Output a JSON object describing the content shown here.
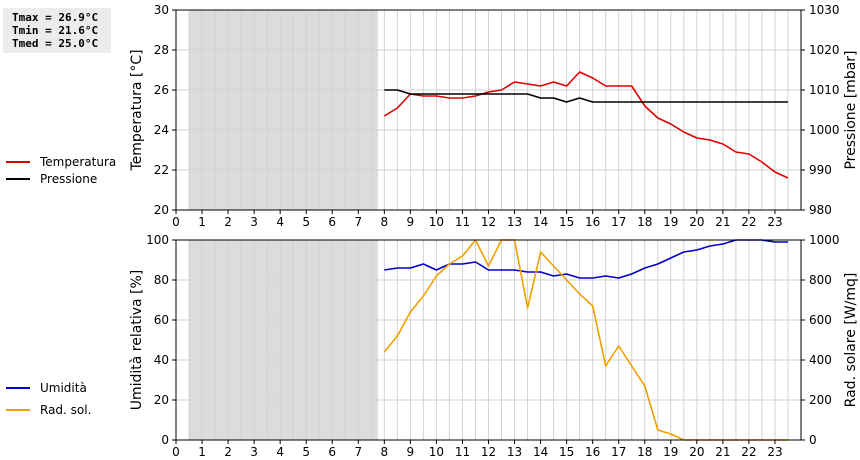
{
  "stats": {
    "tmax": "Tmax = 26.9°C",
    "tmin": "Tmin = 21.6°C",
    "tmed": "Tmed = 25.0°C"
  },
  "colors": {
    "temperature": "#dd0000",
    "pressure": "#000000",
    "humidity": "#0000cc",
    "solar": "#f0a000",
    "shade": "#dcdcdc",
    "grid": "#d2d2d2"
  },
  "chart_data": [
    {
      "type": "line",
      "xlim": [
        0,
        24
      ],
      "xticks": [
        0,
        1,
        2,
        3,
        4,
        5,
        6,
        7,
        8,
        9,
        10,
        11,
        12,
        13,
        14,
        15,
        16,
        17,
        18,
        19,
        20,
        21,
        22,
        23
      ],
      "shaded_x_range": [
        0.5,
        7.75
      ],
      "grid": true,
      "y_left": {
        "label": "Temperatura [°C]",
        "lim": [
          20,
          30
        ],
        "ticks": [
          20,
          22,
          24,
          26,
          28,
          30
        ]
      },
      "y_right": {
        "label": "Pressione [mbar]",
        "lim": [
          980,
          1030
        ],
        "ticks": [
          980,
          990,
          1000,
          1010,
          1020,
          1030
        ]
      },
      "legend": [
        "Temperatura",
        "Pressione"
      ],
      "series": [
        {
          "name": "Temperatura",
          "axis": "left",
          "x": [
            8,
            8.5,
            9,
            9.5,
            10,
            10.5,
            11,
            11.5,
            12,
            12.5,
            13,
            13.5,
            14,
            14.5,
            15,
            15.5,
            16,
            16.5,
            17,
            17.5,
            18,
            18.5,
            19,
            19.5,
            20,
            20.5,
            21,
            21.5,
            22,
            22.5,
            23,
            23.5
          ],
          "y": [
            24.7,
            25.1,
            25.8,
            25.7,
            25.7,
            25.6,
            25.6,
            25.7,
            25.9,
            26.0,
            26.4,
            26.3,
            26.2,
            26.4,
            26.2,
            26.9,
            26.6,
            26.2,
            26.2,
            26.2,
            25.2,
            24.6,
            24.3,
            23.9,
            23.6,
            23.5,
            23.3,
            22.9,
            22.8,
            22.4,
            21.9,
            21.6
          ]
        },
        {
          "name": "Pressione",
          "axis": "right",
          "x": [
            8,
            8.5,
            9,
            9.5,
            10,
            10.5,
            11,
            11.5,
            12,
            12.5,
            13,
            13.5,
            14,
            14.5,
            15,
            15.5,
            16,
            16.5,
            17,
            17.5,
            18,
            18.5,
            19,
            19.5,
            20,
            20.5,
            21,
            21.5,
            22,
            22.5,
            23,
            23.5
          ],
          "y": [
            1010,
            1010,
            1009,
            1009,
            1009,
            1009,
            1009,
            1009,
            1009,
            1009,
            1009,
            1009,
            1008,
            1008,
            1007,
            1008,
            1007,
            1007,
            1007,
            1007,
            1007,
            1007,
            1007,
            1007,
            1007,
            1007,
            1007,
            1007,
            1007,
            1007,
            1007,
            1007
          ]
        }
      ]
    },
    {
      "type": "line",
      "xlim": [
        0,
        24
      ],
      "xticks": [
        0,
        1,
        2,
        3,
        4,
        5,
        6,
        7,
        8,
        9,
        10,
        11,
        12,
        13,
        14,
        15,
        16,
        17,
        18,
        19,
        20,
        21,
        22,
        23
      ],
      "shaded_x_range": [
        0.5,
        7.75
      ],
      "grid": true,
      "y_left": {
        "label": "Umidità relativa [%]",
        "lim": [
          0,
          100
        ],
        "ticks": [
          0,
          20,
          40,
          60,
          80,
          100
        ]
      },
      "y_right": {
        "label": "Rad. solare [W/mq]",
        "lim": [
          0,
          1000
        ],
        "ticks": [
          0,
          200,
          400,
          600,
          800,
          1000
        ]
      },
      "legend": [
        "Umidità",
        "Rad. sol."
      ],
      "series": [
        {
          "name": "Umidità",
          "axis": "left",
          "x": [
            8,
            8.5,
            9,
            9.5,
            10,
            10.5,
            11,
            11.5,
            12,
            12.5,
            13,
            13.5,
            14,
            14.5,
            15,
            15.5,
            16,
            16.5,
            17,
            17.5,
            18,
            18.5,
            19,
            19.5,
            20,
            20.5,
            21,
            21.5,
            22,
            22.5,
            23,
            23.5
          ],
          "y": [
            85,
            86,
            86,
            88,
            85,
            88,
            88,
            89,
            85,
            85,
            85,
            84,
            84,
            82,
            83,
            81,
            81,
            82,
            81,
            83,
            86,
            88,
            91,
            94,
            95,
            97,
            98,
            100,
            100,
            100,
            99,
            99
          ]
        },
        {
          "name": "Rad. sol.",
          "axis": "right",
          "x": [
            8,
            8.5,
            9,
            9.5,
            10,
            10.5,
            11,
            11.5,
            12,
            12.5,
            13,
            13.5,
            14,
            14.5,
            15,
            15.5,
            16,
            16.5,
            17,
            17.5,
            18,
            18.5,
            19,
            19.5,
            20,
            20.5,
            21,
            21.5,
            22,
            22.5,
            23,
            23.5
          ],
          "y": [
            440,
            520,
            640,
            720,
            820,
            880,
            920,
            1000,
            870,
            1000,
            1000,
            660,
            940,
            870,
            800,
            730,
            670,
            370,
            470,
            370,
            270,
            50,
            30,
            0,
            0,
            0,
            0,
            0,
            0,
            0,
            0,
            0
          ]
        }
      ]
    }
  ]
}
